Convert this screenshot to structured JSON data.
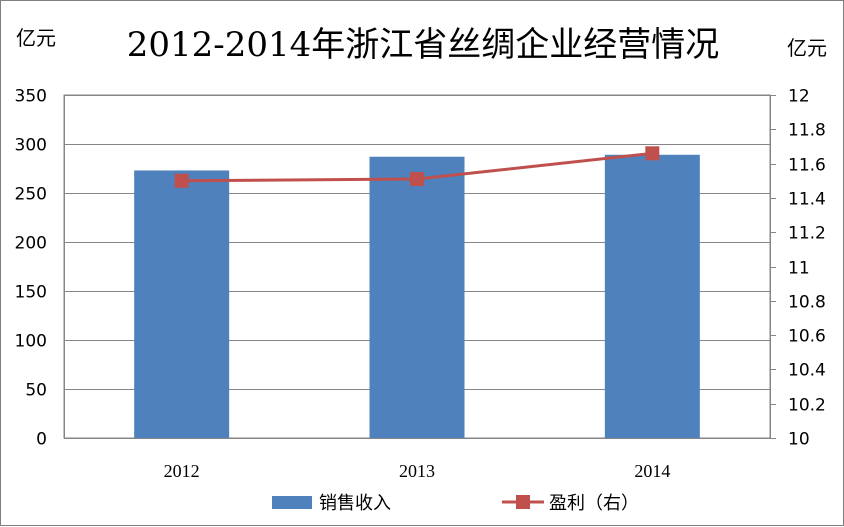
{
  "chart_data": {
    "type": "bar",
    "title": "2012-2014年浙江省丝绸企业经营情况",
    "left_unit": "亿元",
    "right_unit": "亿元",
    "categories": [
      "2012",
      "2013",
      "2014"
    ],
    "series": [
      {
        "name": "销售收入",
        "type": "bar",
        "axis": "left",
        "color": "#4f81bd",
        "values": [
          273,
          287,
          289
        ]
      },
      {
        "name": "盈利（右）",
        "type": "line",
        "axis": "right",
        "color": "#c0504d",
        "marker": "square",
        "values": [
          11.5,
          11.51,
          11.66
        ]
      }
    ],
    "y_left": {
      "range": [
        0,
        350
      ],
      "ticks": [
        "0",
        "50",
        "100",
        "150",
        "200",
        "250",
        "300",
        "350"
      ]
    },
    "y_right": {
      "range": [
        10,
        12
      ],
      "ticks": [
        "10",
        "10.2",
        "10.4",
        "10.6",
        "10.8",
        "11",
        "11.2",
        "11.4",
        "11.6",
        "11.8",
        "12"
      ]
    },
    "grid": true,
    "legend": "bottom"
  }
}
